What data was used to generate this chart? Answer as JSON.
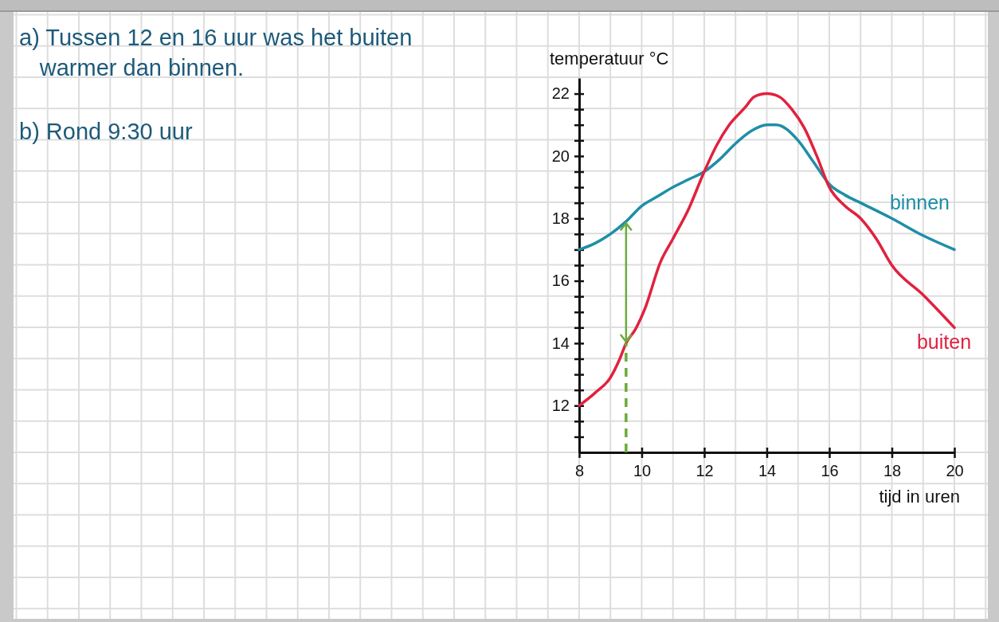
{
  "chart_data": {
    "type": "line",
    "xlabel": "tijd in uren",
    "ylabel": "temperatuur °C",
    "annotations": [
      "a) Tussen 12 en 16 uur was het buiten warmer dan binnen.",
      "b) Rond 9:30 uur"
    ],
    "xlim": [
      8,
      20
    ],
    "xticks": [
      8,
      10,
      12,
      14,
      16,
      18,
      20
    ],
    "ylim": [
      10.5,
      22.5
    ],
    "yticks": [
      {
        "value": 11,
        "label": null
      },
      {
        "value": 11.5,
        "label": null
      },
      12,
      {
        "value": 12.5,
        "label": null
      },
      {
        "value": 13,
        "label": null
      },
      {
        "value": 13.5,
        "label": null
      },
      14,
      {
        "value": 14.5,
        "label": null
      },
      {
        "value": 15,
        "label": null
      },
      {
        "value": 15.5,
        "label": null
      },
      16,
      {
        "value": 16.5,
        "label": null
      },
      {
        "value": 17,
        "label": null
      },
      {
        "value": 17.5,
        "label": null
      },
      18,
      {
        "value": 18.5,
        "label": null
      },
      {
        "value": 19,
        "label": null
      },
      {
        "value": 19.5,
        "label": null
      },
      20,
      {
        "value": 20.5,
        "label": null
      },
      {
        "value": 21,
        "label": null
      },
      {
        "value": 21.5,
        "label": null
      },
      22
    ],
    "series": [
      {
        "name": "binnen",
        "color": "#1e8fa6",
        "x": [
          8,
          8.5,
          9,
          9.5,
          10,
          10.5,
          11,
          11.5,
          12,
          12.5,
          13,
          13.5,
          14,
          14.3,
          15,
          15.5,
          16,
          16.5,
          17,
          18,
          19,
          20
        ],
        "values": [
          17.0,
          17.2,
          17.5,
          17.9,
          18.4,
          18.7,
          19.0,
          19.25,
          19.5,
          19.9,
          20.4,
          20.8,
          21.0,
          21.0,
          20.5,
          19.8,
          19.1,
          18.75,
          18.5,
          18.0,
          17.45,
          17.0
        ]
      },
      {
        "name": "buiten",
        "color": "#e1213f",
        "x": [
          8,
          8.5,
          9,
          9.3,
          9.5,
          9.8,
          10.1,
          10.6,
          11,
          11.5,
          12,
          12.4,
          12.8,
          13.3,
          13.6,
          14,
          14.4,
          14.8,
          15.2,
          15.6,
          16,
          16.5,
          17,
          17.5,
          18,
          19,
          20
        ],
        "values": [
          12.0,
          12.4,
          12.9,
          13.5,
          14.0,
          14.45,
          15.1,
          16.6,
          17.35,
          18.3,
          19.5,
          20.35,
          21.0,
          21.55,
          21.9,
          22.0,
          21.9,
          21.5,
          20.9,
          20.0,
          19.0,
          18.4,
          18.0,
          17.35,
          16.5,
          15.55,
          14.5
        ]
      }
    ],
    "ref_lines": [
      {
        "axis": "x",
        "value": 9.5,
        "color": "#6aab3c",
        "line_style": "dashed"
      }
    ]
  }
}
